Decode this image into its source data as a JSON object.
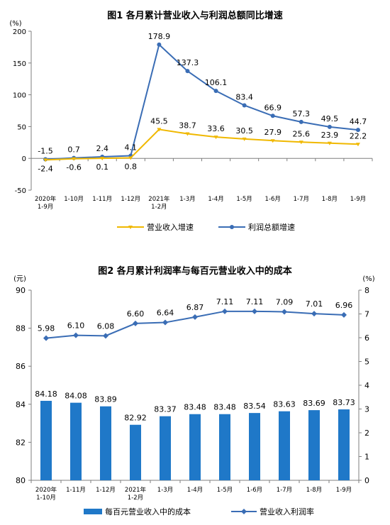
{
  "chart_data": [
    {
      "type": "line",
      "title": "图1  各月累计营业收入与利润总额同比增速",
      "unit_label": "(%)",
      "categories": [
        [
          "2020年",
          "1-9月"
        ],
        [
          "1-10月"
        ],
        [
          "1-11月"
        ],
        [
          "1-12月"
        ],
        [
          "2021年",
          "1-2月"
        ],
        [
          "1-3月"
        ],
        [
          "1-4月"
        ],
        [
          "1-5月"
        ],
        [
          "1-6月"
        ],
        [
          "1-7月"
        ],
        [
          "1-8月"
        ],
        [
          "1-9月"
        ]
      ],
      "ylim": [
        -50,
        200
      ],
      "yticks": [
        "-50",
        "0",
        "50",
        "100",
        "150",
        "200"
      ],
      "grid": false,
      "legend_position": "bottom",
      "series": [
        {
          "name": "营业收入增速",
          "color": "#F0B800",
          "values": [
            -2.4,
            -0.6,
            0.1,
            0.8,
            45.5,
            38.7,
            33.6,
            30.5,
            27.9,
            25.6,
            23.9,
            22.2
          ],
          "labels": [
            "-2.4",
            "-0.6",
            "0.1",
            "0.8",
            "45.5",
            "38.7",
            "33.6",
            "30.5",
            "27.9",
            "25.6",
            "23.9",
            "22.2"
          ]
        },
        {
          "name": "利润总额增速",
          "color": "#3A6DB5",
          "values": [
            -1.5,
            0.7,
            2.4,
            4.1,
            178.9,
            137.3,
            106.1,
            83.4,
            66.9,
            57.3,
            49.5,
            44.7
          ],
          "labels": [
            "-1.5",
            "0.7",
            "2.4",
            "4.1",
            "178.9",
            "137.3",
            "106.1",
            "83.4",
            "66.9",
            "57.3",
            "49.5",
            "44.7"
          ]
        }
      ]
    },
    {
      "type": "bar",
      "title": "图2  各月累计利润率与每百元营业收入中的成本",
      "left_unit_label": "(元)",
      "right_unit_label": "(%)",
      "categories": [
        [
          "2020年",
          "1-10月"
        ],
        [
          "1-11月"
        ],
        [
          "1-12月"
        ],
        [
          "2021年",
          "1-2月"
        ],
        [
          "1-3月"
        ],
        [
          "1-4月"
        ],
        [
          "1-5月"
        ],
        [
          "1-6月"
        ],
        [
          "1-7月"
        ],
        [
          "1-8月"
        ],
        [
          "1-9月"
        ]
      ],
      "ylim_left": [
        80,
        90
      ],
      "yticks_left": [
        "80",
        "82",
        "84",
        "86",
        "88",
        "90"
      ],
      "ylim_right": [
        0,
        8
      ],
      "yticks_right": [
        "0",
        "1",
        "2",
        "3",
        "4",
        "5",
        "6",
        "7",
        "8"
      ],
      "grid": false,
      "legend_position": "bottom",
      "bar_series": {
        "name": "每百元营业收入中的成本",
        "color": "#1F78C8",
        "values": [
          84.18,
          84.08,
          83.89,
          82.92,
          83.37,
          83.48,
          83.48,
          83.54,
          83.63,
          83.69,
          83.73
        ],
        "labels": [
          "84.18",
          "84.08",
          "83.89",
          "82.92",
          "83.37",
          "83.48",
          "83.48",
          "83.54",
          "83.63",
          "83.69",
          "83.73"
        ]
      },
      "line_series": {
        "name": "营业收入利润率",
        "color": "#3A6DB5",
        "values": [
          5.98,
          6.1,
          6.08,
          6.6,
          6.64,
          6.87,
          7.11,
          7.11,
          7.09,
          7.01,
          6.96
        ],
        "labels": [
          "5.98",
          "6.10",
          "6.08",
          "6.60",
          "6.64",
          "6.87",
          "7.11",
          "7.11",
          "7.09",
          "7.01",
          "6.96"
        ]
      }
    }
  ]
}
